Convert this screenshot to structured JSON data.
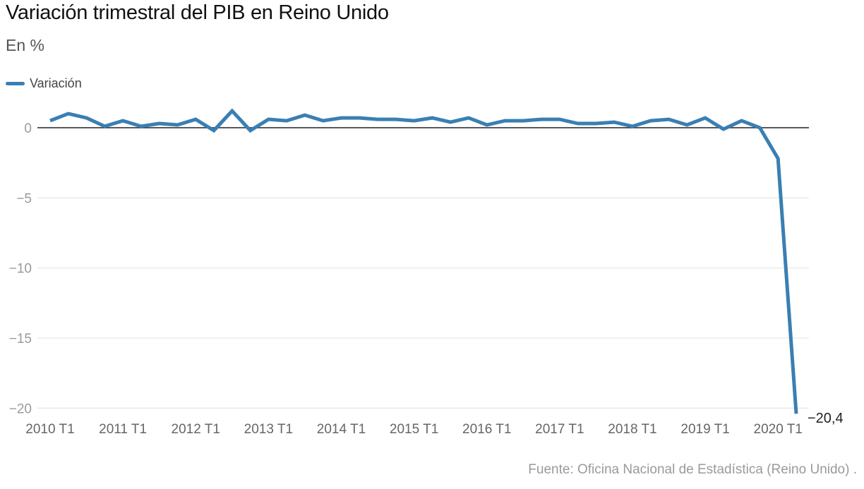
{
  "header": {
    "title": "Variación trimestral del PIB en Reino Unido",
    "subtitle": "En %"
  },
  "legend": {
    "items": [
      {
        "label": "Variación",
        "color": "#3a7fb3"
      }
    ]
  },
  "footer": {
    "source": "Fuente: Oficina Nacional de Estadística (Reino Unido) ."
  },
  "colors": {
    "line": "#3a7fb3",
    "zero_line": "#222222",
    "grid": "#e6e6e6",
    "tick_text": "#9a9a9a",
    "xtick_text": "#666666",
    "annotation": "#222222"
  },
  "chart_data": {
    "type": "line",
    "title": "Variación trimestral del PIB en Reino Unido",
    "subtitle": "En %",
    "xlabel": "",
    "ylabel": "%",
    "ylim": [
      -20.4,
      1.2
    ],
    "yticks": [
      0,
      -5,
      -10,
      -15,
      -20
    ],
    "ytick_labels": [
      "0",
      "−5",
      "−10",
      "−15",
      "−20"
    ],
    "xtick_labels": [
      "2010 T1",
      "2011 T1",
      "2012 T1",
      "2013 T1",
      "2014 T1",
      "2015 T1",
      "2016 T1",
      "2017 T1",
      "2018 T1",
      "2019 T1",
      "2020 T1"
    ],
    "grid": true,
    "legend_position": "top-left",
    "annotations": [
      {
        "x": "2020 T2",
        "text": "−20,4"
      }
    ],
    "x": [
      "2010 T1",
      "2010 T2",
      "2010 T3",
      "2010 T4",
      "2011 T1",
      "2011 T2",
      "2011 T3",
      "2011 T4",
      "2012 T1",
      "2012 T2",
      "2012 T3",
      "2012 T4",
      "2013 T1",
      "2013 T2",
      "2013 T3",
      "2013 T4",
      "2014 T1",
      "2014 T2",
      "2014 T3",
      "2014 T4",
      "2015 T1",
      "2015 T2",
      "2015 T3",
      "2015 T4",
      "2016 T1",
      "2016 T2",
      "2016 T3",
      "2016 T4",
      "2017 T1",
      "2017 T2",
      "2017 T3",
      "2017 T4",
      "2018 T1",
      "2018 T2",
      "2018 T3",
      "2018 T4",
      "2019 T1",
      "2019 T2",
      "2019 T3",
      "2019 T4",
      "2020 T1",
      "2020 T2"
    ],
    "series": [
      {
        "name": "Variación",
        "values": [
          0.5,
          1.0,
          0.7,
          0.1,
          0.5,
          0.1,
          0.3,
          0.2,
          0.6,
          -0.2,
          1.2,
          -0.2,
          0.6,
          0.5,
          0.9,
          0.5,
          0.7,
          0.7,
          0.6,
          0.6,
          0.5,
          0.7,
          0.4,
          0.7,
          0.2,
          0.5,
          0.5,
          0.6,
          0.6,
          0.3,
          0.3,
          0.4,
          0.1,
          0.5,
          0.6,
          0.2,
          0.7,
          -0.1,
          0.5,
          0.0,
          -2.2,
          -20.4
        ]
      }
    ]
  }
}
